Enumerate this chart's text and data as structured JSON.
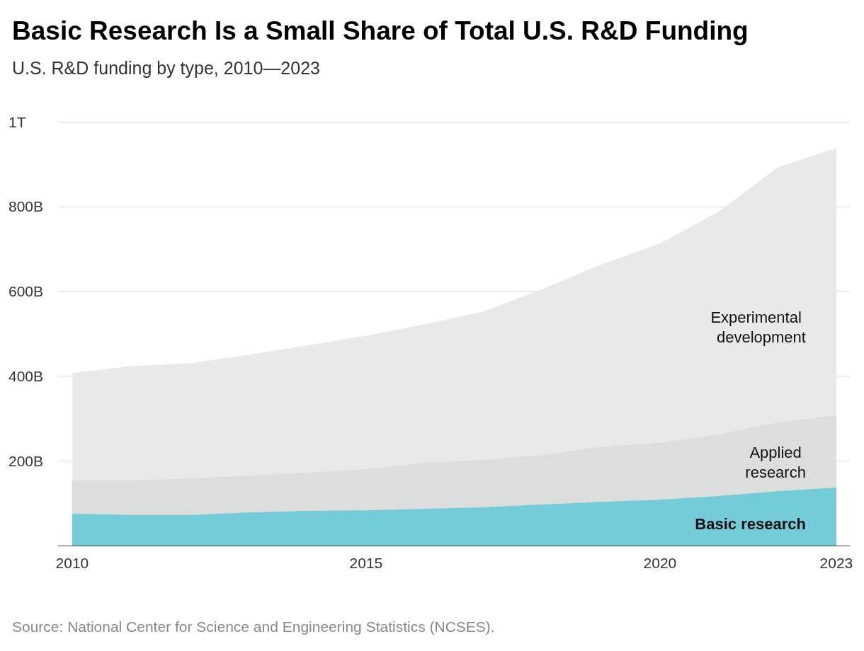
{
  "chart_data": {
    "type": "area",
    "title": "Basic Research Is a Small Share of Total U.S. R&D Funding",
    "subtitle": "U.S. R&D funding by type, 2010—2023",
    "x": [
      2010,
      2011,
      2012,
      2013,
      2014,
      2015,
      2016,
      2017,
      2018,
      2019,
      2020,
      2021,
      2022,
      2023
    ],
    "series": [
      {
        "name": "Basic research",
        "color": "#74ccd8",
        "values": [
          75000000000.0,
          72000000000.0,
          72000000000.0,
          78000000000.0,
          82000000000.0,
          83000000000.0,
          87000000000.0,
          90000000000.0,
          97000000000.0,
          103000000000.0,
          108000000000.0,
          117000000000.0,
          128000000000.0,
          137000000000.0
        ]
      },
      {
        "name": "Applied research",
        "color": "#dcdddd",
        "values": [
          78000000000.0,
          81000000000.0,
          86000000000.0,
          87000000000.0,
          90000000000.0,
          97000000000.0,
          108000000000.0,
          112000000000.0,
          116000000000.0,
          130000000000.0,
          134000000000.0,
          145000000000.0,
          162000000000.0,
          170000000000.0
        ]
      },
      {
        "name": "Experimental development",
        "color": "#e8e9e9",
        "values": [
          254000000000.0,
          270000000000.0,
          272000000000.0,
          285000000000.0,
          300000000000.0,
          315000000000.0,
          327000000000.0,
          350000000000.0,
          392000000000.0,
          430000000000.0,
          471000000000.0,
          526000000000.0,
          602000000000.0,
          631000000000.0
        ]
      }
    ],
    "stacked": true,
    "xlim": [
      2009.76,
      2023.23
    ],
    "xticks": [
      2010,
      2015,
      2020,
      2023
    ],
    "ylim": [
      0,
      1000000000000.0
    ],
    "yticks": [
      {
        "value": 200000000000.0,
        "label": "200B"
      },
      {
        "value": 400000000000.0,
        "label": "400B"
      },
      {
        "value": 600000000000.0,
        "label": "600B"
      },
      {
        "value": 800000000000.0,
        "label": "800B"
      },
      {
        "value": 1000000000000.0,
        "label": "1T"
      }
    ],
    "grid": "y",
    "legend": false,
    "annotations": [
      "Source: National Center for Science and Engineering Statistics (NCSES)."
    ]
  }
}
